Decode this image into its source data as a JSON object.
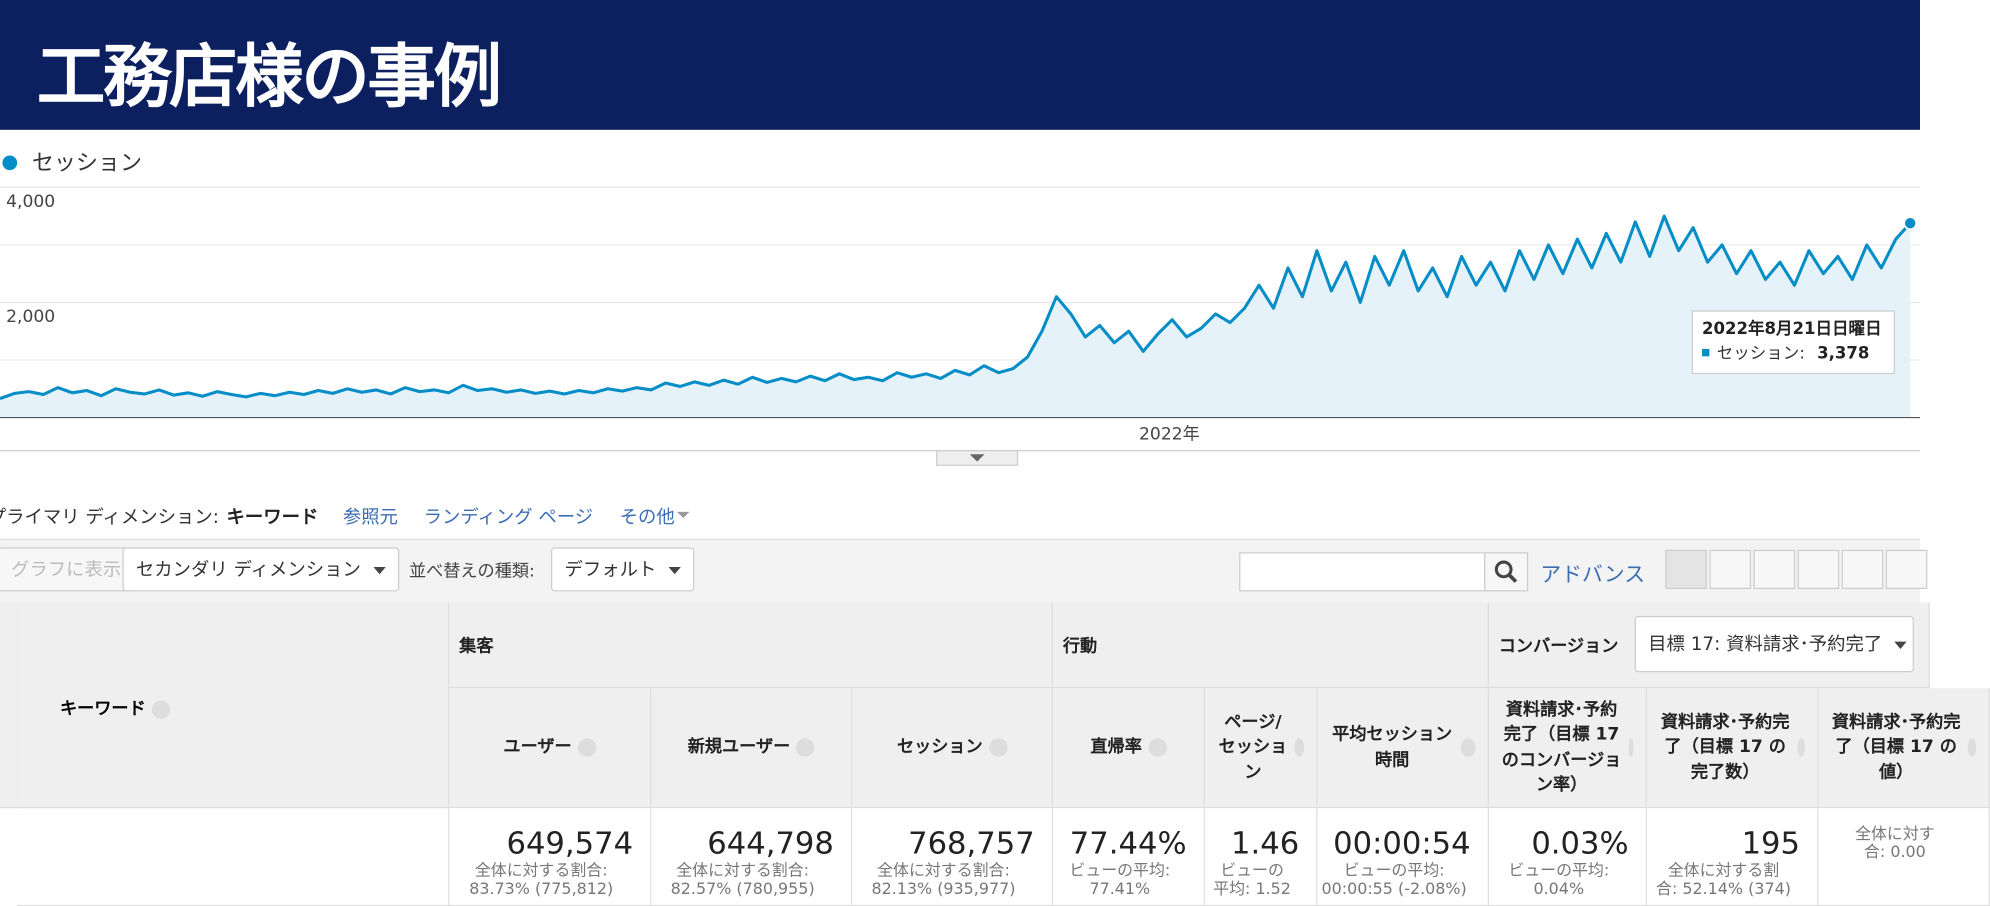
{
  "header": {
    "title": "工務店様の事例"
  },
  "chart_data": {
    "type": "line",
    "x_axis_labels": [
      "2022年"
    ],
    "series": [
      {
        "name": "セッション",
        "color": "#058dc7",
        "values": [
          330,
          420,
          450,
          400,
          520,
          430,
          470,
          380,
          500,
          440,
          410,
          480,
          390,
          430,
          370,
          450,
          400,
          360,
          420,
          380,
          440,
          400,
          470,
          420,
          500,
          440,
          480,
          410,
          520,
          450,
          480,
          430,
          560,
          470,
          500,
          440,
          480,
          420,
          460,
          410,
          470,
          430,
          500,
          460,
          520,
          480,
          600,
          540,
          620,
          560,
          650,
          580,
          700,
          610,
          680,
          620,
          720,
          640,
          760,
          660,
          700,
          640,
          780,
          700,
          760,
          680,
          820,
          740,
          900,
          780,
          850,
          1050,
          1500,
          2100,
          1800,
          1400,
          1600,
          1300,
          1500,
          1150,
          1450,
          1700,
          1400,
          1550,
          1800,
          1650,
          1900,
          2300,
          1900,
          2600,
          2100,
          2900,
          2200,
          2700,
          2000,
          2800,
          2300,
          2900,
          2200,
          2600,
          2100,
          2800,
          2300,
          2700,
          2200,
          2900,
          2400,
          3000,
          2500,
          3100,
          2600,
          3200,
          2700,
          3400,
          2800,
          3500,
          2900,
          3300,
          2700,
          3000,
          2500,
          2900,
          2400,
          2700,
          2300,
          2900,
          2500,
          2800,
          2400,
          3000,
          2600,
          3100,
          3378
        ]
      }
    ],
    "ylim": [
      0,
      4000
    ],
    "yticks": [
      {
        "value": 2000,
        "label": "2,000"
      },
      {
        "value": 4000,
        "label": "4,000"
      }
    ],
    "minor_yticks": [
      1000,
      3000
    ],
    "grid": true,
    "area_color": "#e6f2f9",
    "tooltip": {
      "date": "2022年8月21日日曜日",
      "label": "セッション:",
      "value": "3,378"
    }
  },
  "primary_dimension": {
    "label": "プライマリ ディメンション:",
    "active": "キーワード",
    "options": [
      "参照元",
      "ランディング ページ",
      "その他"
    ]
  },
  "toolbar": {
    "plot": "グラフに表示",
    "secondary": "セカンダリ ディメンション",
    "sort_label": "並べ替えの種類:",
    "sort_value": "デフォルト",
    "advanced": "アドバンス"
  },
  "table": {
    "keyword_header": "キーワード",
    "groups": [
      "集客",
      "行動",
      "コンバージョン"
    ],
    "goal_select": "目標 17: 資料請求･予約完了",
    "columns": [
      "ユーザー",
      "新規ユーザー",
      "セッション",
      "直帰率",
      "ページ/セッション",
      "平均セッション時間",
      "資料請求･予約完了（目標 17 のコンバージョン率）",
      "資料請求･予約完了（目標 17 の完了数）",
      "資料請求･予約完了（目標 17 の値）"
    ],
    "totals": [
      [
        "649,574",
        "全体に対する割合:",
        "83.73% (775,812)"
      ],
      [
        "644,798",
        "全体に対する割合:",
        "82.57% (780,955)"
      ],
      [
        "768,757",
        "全体に対する割合:",
        "82.13% (935,977)"
      ],
      [
        "77.44%",
        "ビューの平均:",
        "77.41%"
      ],
      [
        "1.46",
        "ビューの",
        "平均: 1.52"
      ],
      [
        "00:00:54",
        "ビューの平均:",
        "00:00:55 (-2.08%)"
      ],
      [
        "0.03%",
        "ビューの平均:",
        "0.04%"
      ],
      [
        "195",
        "全体に対する割",
        "合: 52.14% (374)"
      ],
      [
        "",
        "全体に対す",
        "合: 0.00"
      ]
    ]
  }
}
